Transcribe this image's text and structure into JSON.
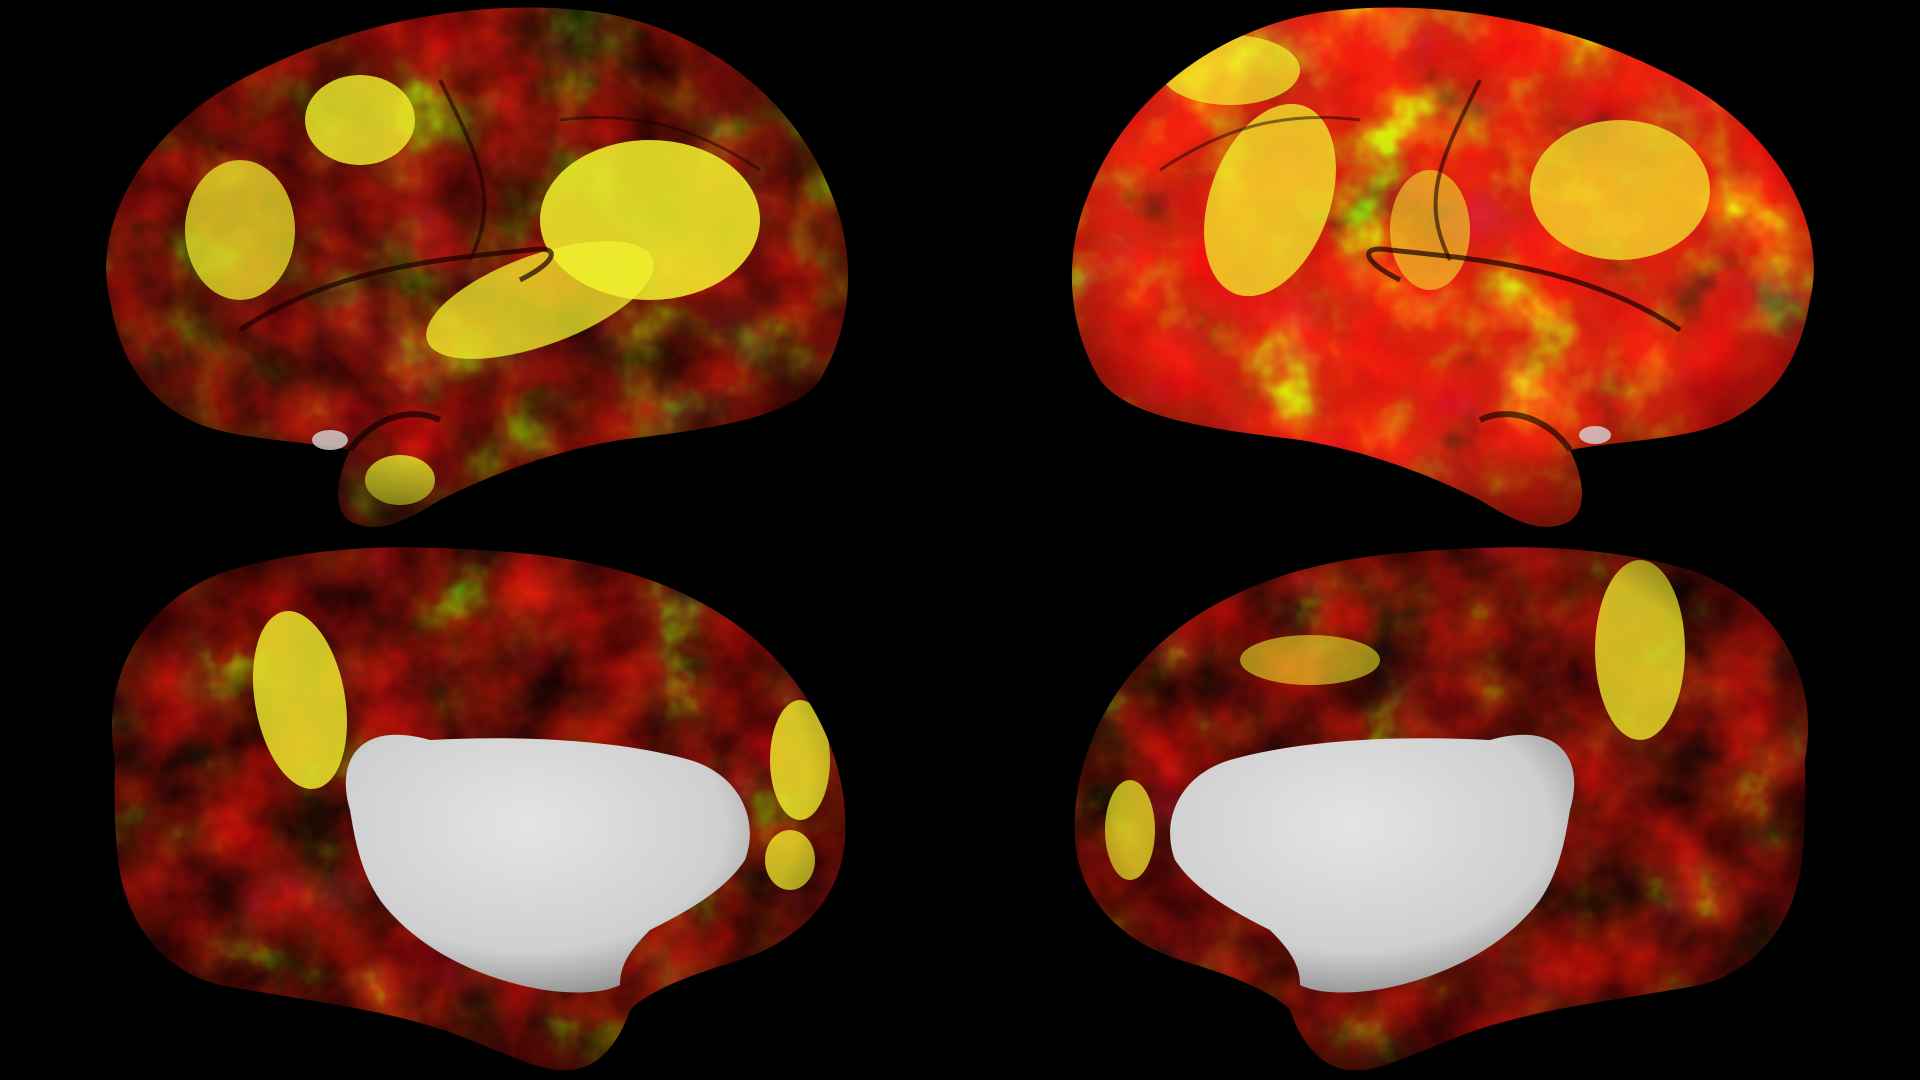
{
  "colors": {
    "background": "#000000",
    "activation_low": "#5c0a08",
    "activation_mid": "#d21e10",
    "activation_high": "#f2f22e",
    "medial_wall": "#d6d6d6"
  },
  "views": [
    {
      "name": "left-lateral",
      "heat": 0.55
    },
    {
      "name": "right-lateral",
      "heat": 0.5
    },
    {
      "name": "left-medial",
      "heat": 0.4
    },
    {
      "name": "right-medial",
      "heat": 0.38
    }
  ]
}
